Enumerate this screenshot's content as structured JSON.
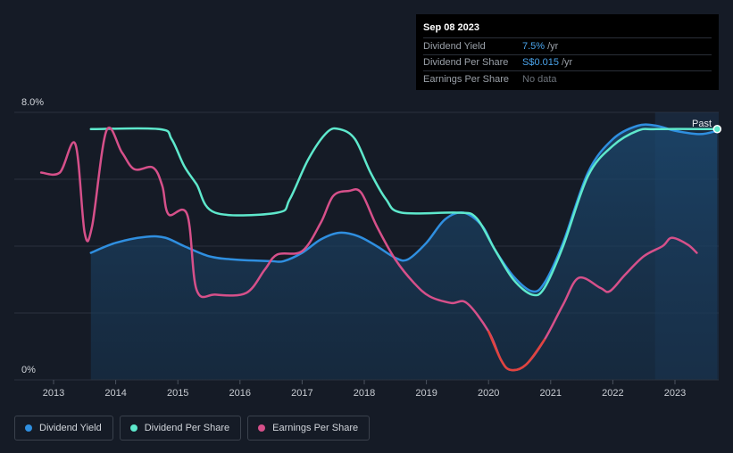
{
  "chart_data": {
    "type": "line",
    "y_axis": {
      "min": 0,
      "max": 8,
      "unit": "%",
      "top_label": "8.0%",
      "bottom_label": "0%"
    },
    "x_axis": {
      "min": 2012.5,
      "max": 2023.68,
      "ticks": [
        "2013",
        "2014",
        "2015",
        "2016",
        "2017",
        "2018",
        "2019",
        "2020",
        "2021",
        "2022",
        "2023"
      ]
    },
    "past_label": "Past",
    "past_region_start": 2022.68,
    "series": [
      {
        "name": "Dividend Yield",
        "color": "#2f8fe0",
        "area": true,
        "points": [
          [
            2013.6,
            3.8
          ],
          [
            2014.0,
            4.1
          ],
          [
            2014.5,
            4.28
          ],
          [
            2014.8,
            4.25
          ],
          [
            2015.1,
            4.0
          ],
          [
            2015.5,
            3.7
          ],
          [
            2015.9,
            3.6
          ],
          [
            2016.5,
            3.55
          ],
          [
            2016.7,
            3.55
          ],
          [
            2017.0,
            3.8
          ],
          [
            2017.3,
            4.2
          ],
          [
            2017.6,
            4.4
          ],
          [
            2017.9,
            4.3
          ],
          [
            2018.2,
            4.0
          ],
          [
            2018.5,
            3.65
          ],
          [
            2018.7,
            3.6
          ],
          [
            2019.0,
            4.1
          ],
          [
            2019.3,
            4.8
          ],
          [
            2019.6,
            5.0
          ],
          [
            2019.9,
            4.6
          ],
          [
            2020.1,
            3.9
          ],
          [
            2020.4,
            3.1
          ],
          [
            2020.7,
            2.65
          ],
          [
            2020.9,
            2.9
          ],
          [
            2021.2,
            4.1
          ],
          [
            2021.6,
            6.2
          ],
          [
            2022.0,
            7.2
          ],
          [
            2022.4,
            7.6
          ],
          [
            2022.7,
            7.6
          ],
          [
            2023.0,
            7.45
          ],
          [
            2023.4,
            7.35
          ],
          [
            2023.68,
            7.45
          ]
        ]
      },
      {
        "name": "Dividend Per Share",
        "color": "#5ee8cc",
        "area": false,
        "points": [
          [
            2013.6,
            7.5
          ],
          [
            2014.7,
            7.5
          ],
          [
            2014.9,
            7.2
          ],
          [
            2015.1,
            6.4
          ],
          [
            2015.3,
            5.85
          ],
          [
            2015.6,
            5.0
          ],
          [
            2016.6,
            5.0
          ],
          [
            2016.8,
            5.4
          ],
          [
            2017.1,
            6.6
          ],
          [
            2017.4,
            7.4
          ],
          [
            2017.6,
            7.5
          ],
          [
            2017.85,
            7.2
          ],
          [
            2018.1,
            6.2
          ],
          [
            2018.35,
            5.4
          ],
          [
            2018.6,
            5.0
          ],
          [
            2019.5,
            5.0
          ],
          [
            2019.8,
            4.85
          ],
          [
            2020.1,
            3.9
          ],
          [
            2020.4,
            3.0
          ],
          [
            2020.7,
            2.55
          ],
          [
            2020.9,
            2.75
          ],
          [
            2021.2,
            4.0
          ],
          [
            2021.6,
            6.1
          ],
          [
            2022.0,
            7.0
          ],
          [
            2022.4,
            7.45
          ],
          [
            2022.7,
            7.5
          ],
          [
            2023.68,
            7.5
          ]
        ]
      },
      {
        "name": "Earnings Per Share",
        "color": "#d6508a",
        "area": false,
        "points": [
          [
            2012.8,
            6.2
          ],
          [
            2013.1,
            6.2
          ],
          [
            2013.35,
            7.05
          ],
          [
            2013.5,
            4.4
          ],
          [
            2013.62,
            4.6
          ],
          [
            2013.85,
            7.45
          ],
          [
            2014.1,
            6.8
          ],
          [
            2014.3,
            6.3
          ],
          [
            2014.6,
            6.35
          ],
          [
            2014.75,
            5.8
          ],
          [
            2014.85,
            4.95
          ],
          [
            2015.15,
            4.95
          ],
          [
            2015.3,
            2.7
          ],
          [
            2015.6,
            2.55
          ],
          [
            2016.1,
            2.6
          ],
          [
            2016.4,
            3.3
          ],
          [
            2016.6,
            3.75
          ],
          [
            2017.0,
            3.85
          ],
          [
            2017.3,
            4.7
          ],
          [
            2017.5,
            5.5
          ],
          [
            2017.75,
            5.65
          ],
          [
            2017.95,
            5.6
          ],
          [
            2018.2,
            4.6
          ],
          [
            2018.5,
            3.6
          ],
          [
            2018.8,
            2.9
          ],
          [
            2019.05,
            2.5
          ],
          [
            2019.4,
            2.3
          ],
          [
            2019.65,
            2.3
          ],
          [
            2020.0,
            1.45
          ],
          [
            2020.2,
            0.6
          ],
          [
            2020.35,
            0.3
          ],
          [
            2020.6,
            0.45
          ],
          [
            2020.9,
            1.2
          ],
          [
            2021.2,
            2.25
          ],
          [
            2021.45,
            3.05
          ],
          [
            2021.8,
            2.75
          ],
          [
            2021.95,
            2.65
          ],
          [
            2022.2,
            3.15
          ],
          [
            2022.5,
            3.7
          ],
          [
            2022.8,
            4.0
          ],
          [
            2022.95,
            4.25
          ],
          [
            2023.2,
            4.05
          ],
          [
            2023.35,
            3.8
          ]
        ]
      }
    ]
  },
  "tooltip": {
    "date": "Sep 08 2023",
    "rows": [
      {
        "label": "Dividend Yield",
        "value": "7.5%",
        "unit": "/yr"
      },
      {
        "label": "Dividend Per Share",
        "value": "S$0.015",
        "unit": "/yr"
      },
      {
        "label": "Earnings Per Share",
        "value": "No data",
        "unit": ""
      }
    ]
  },
  "legend": [
    {
      "label": "Dividend Yield",
      "color": "#2f8fe0"
    },
    {
      "label": "Dividend Per Share",
      "color": "#5ee8cc"
    },
    {
      "label": "Earnings Per Share",
      "color": "#d6508a"
    }
  ]
}
